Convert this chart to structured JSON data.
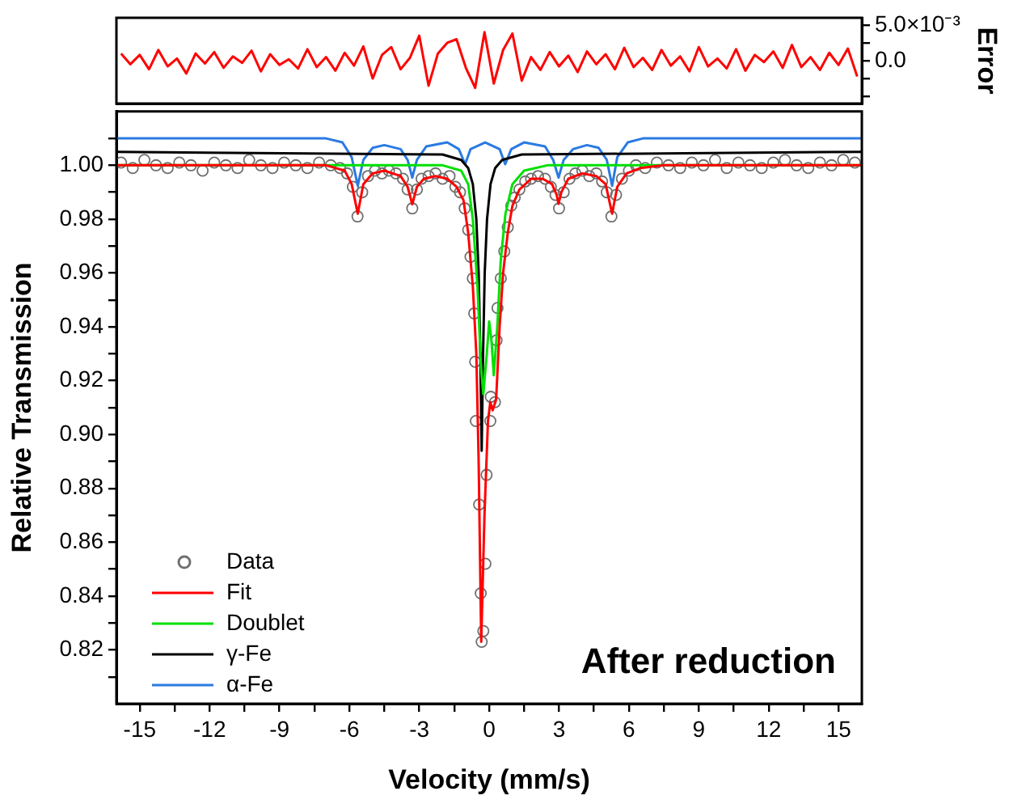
{
  "chart_data": [
    {
      "type": "line",
      "ylabel": "Error",
      "xlim": [
        -16,
        16
      ],
      "ylim": [
        -0.006,
        0.006
      ],
      "yticks": [
        {
          "value": -0.005,
          "label": null
        },
        {
          "value": -0.0025,
          "label": null
        },
        {
          "value": 0,
          "label": "0.0"
        },
        {
          "value": 0.0025,
          "label": null
        },
        {
          "value": 0.005,
          "label": "5.0×10⁻³"
        }
      ],
      "tick_labels": "y",
      "series": [
        {
          "color": "#ff0000",
          "x": [
            -15.8,
            -15.4,
            -15,
            -14.6,
            -14.2,
            -13.8,
            -13.4,
            -13,
            -12.6,
            -12.2,
            -11.8,
            -11.4,
            -11,
            -10.6,
            -10.2,
            -9.8,
            -9.4,
            -9,
            -8.6,
            -8.2,
            -7.8,
            -7.4,
            -7,
            -6.6,
            -6.2,
            -5.8,
            -5.4,
            -5,
            -4.6,
            -4.2,
            -3.8,
            -3.4,
            -3,
            -2.6,
            -2.2,
            -1.8,
            -1.4,
            -1,
            -0.6,
            -0.2,
            0.2,
            0.6,
            1,
            1.4,
            1.8,
            2.2,
            2.6,
            3,
            3.4,
            3.8,
            4.2,
            4.6,
            5,
            5.4,
            5.8,
            6.2,
            6.6,
            7,
            7.4,
            7.8,
            8.2,
            8.6,
            9,
            9.4,
            9.8,
            10.2,
            10.6,
            11,
            11.4,
            11.8,
            12.2,
            12.6,
            13,
            13.4,
            13.8,
            14.2,
            14.6,
            15,
            15.4,
            15.8
          ],
          "values": [
            0.001,
            -0.0005,
            0.0008,
            -0.0012,
            0.0015,
            -0.0008,
            0.0003,
            -0.0018,
            0.001,
            -0.0004,
            0.0012,
            -0.001,
            0.0006,
            -0.0003,
            0.0014,
            -0.0015,
            0.0009,
            -0.0006,
            0.0002,
            -0.0011,
            0.0016,
            -0.0009,
            0.0005,
            -0.0014,
            0.0011,
            -0.0007,
            0.002,
            -0.0025,
            0.0008,
            0.0019,
            -0.0012,
            0.0004,
            0.0035,
            -0.0035,
            0.001,
            0.0025,
            0.003,
            -0.001,
            -0.0038,
            0.004,
            -0.0032,
            0.0015,
            0.0038,
            -0.0028,
            0.0005,
            -0.0013,
            0.0012,
            -0.0008,
            0.0007,
            -0.0016,
            0.0013,
            -0.0005,
            0.0009,
            -0.0012,
            0.0018,
            -0.0009,
            0.0004,
            -0.0013,
            0.0015,
            -0.0007,
            0.0006,
            -0.0015,
            0.0019,
            -0.0008,
            0.0003,
            -0.0011,
            0.0016,
            -0.0014,
            0.0008,
            -0.0002,
            0.0013,
            -0.001,
            0.0022,
            -0.0009,
            0.0005,
            -0.0013,
            0.0011,
            -0.0006,
            0.0017,
            -0.0022
          ]
        }
      ]
    },
    {
      "type": "line",
      "xlabel": "Velocity (mm/s)",
      "ylabel": "Relative Transmission",
      "xlim": [
        -16,
        16
      ],
      "ylim": [
        0.8,
        1.02
      ],
      "xticks": [
        -15,
        {
          "value": -13.5,
          "label": null
        },
        -12,
        {
          "value": -10.5,
          "label": null
        },
        -9,
        {
          "value": -7.5,
          "label": null
        },
        -6,
        {
          "value": -4.5,
          "label": null
        },
        -3,
        {
          "value": -1.5,
          "label": null
        },
        0,
        {
          "value": 1.5,
          "label": null
        },
        3,
        {
          "value": 4.5,
          "label": null
        },
        6,
        {
          "value": 7.5,
          "label": null
        },
        9,
        {
          "value": 10.5,
          "label": null
        },
        12,
        {
          "value": 13.5,
          "label": null
        },
        15
      ],
      "yticks": [
        {
          "value": 0.81,
          "label": null
        },
        0.82,
        {
          "value": 0.83,
          "label": null
        },
        0.84,
        {
          "value": 0.85,
          "label": null
        },
        0.86,
        {
          "value": 0.87,
          "label": null
        },
        0.88,
        {
          "value": 0.89,
          "label": null
        },
        {
          "value": 0.9,
          "label": "0.90"
        },
        {
          "value": 0.91,
          "label": null
        },
        0.92,
        {
          "value": 0.93,
          "label": null
        },
        0.94,
        {
          "value": 0.95,
          "label": null
        },
        0.96,
        {
          "value": 0.97,
          "label": null
        },
        0.98,
        {
          "value": 0.99,
          "label": null
        },
        {
          "value": 1,
          "label": "1.00"
        },
        {
          "value": 1.01,
          "label": null
        }
      ],
      "legend": "bottom left",
      "annotations": [
        "After reduction"
      ],
      "series": [
        {
          "name": "Data",
          "type": "scatter",
          "marker": "circle",
          "color": "#707070",
          "x": [
            -15.8,
            -15.3,
            -14.8,
            -14.3,
            -13.8,
            -13.3,
            -12.8,
            -12.3,
            -11.8,
            -11.3,
            -10.8,
            -10.3,
            -9.8,
            -9.3,
            -8.8,
            -8.3,
            -7.8,
            -7.3,
            -6.8,
            -6.4,
            -6.1,
            -5.85,
            -5.65,
            -5.45,
            -5.2,
            -4.9,
            -4.6,
            -4.3,
            -4,
            -3.7,
            -3.5,
            -3.3,
            -3.1,
            -2.9,
            -2.6,
            -2.3,
            -2,
            -1.7,
            -1.45,
            -1.25,
            -1.05,
            -0.9,
            -0.8,
            -0.7,
            -0.64,
            -0.6,
            -0.57,
            -0.43,
            -0.36,
            -0.32,
            -0.25,
            -0.16,
            -0.11,
            0.05,
            0.07,
            0.25,
            0.32,
            0.36,
            0.5,
            0.65,
            0.8,
            0.95,
            1.1,
            1.3,
            1.55,
            1.8,
            2.1,
            2.4,
            2.65,
            2.85,
            3,
            3.2,
            3.45,
            3.7,
            4,
            4.3,
            4.6,
            4.85,
            5.05,
            5.25,
            5.45,
            5.7,
            6,
            6.3,
            6.7,
            7.2,
            7.7,
            8.2,
            8.7,
            9.2,
            9.7,
            10.2,
            10.7,
            11.2,
            11.7,
            12.2,
            12.7,
            13.2,
            13.7,
            14.2,
            14.7,
            15.2,
            15.7
          ],
          "values": [
            1.001,
            0.999,
            1.002,
            1,
            0.999,
            1.001,
            1,
            0.998,
            1.001,
            1,
            0.999,
            1.002,
            1,
            0.999,
            1.001,
            1,
            0.999,
            1.001,
            1,
            0.999,
            0.997,
            0.992,
            0.981,
            0.99,
            0.996,
            0.998,
            0.997,
            0.998,
            0.997,
            0.995,
            0.991,
            0.984,
            0.991,
            0.995,
            0.996,
            0.997,
            0.995,
            0.996,
            0.992,
            0.99,
            0.984,
            0.976,
            0.966,
            0.958,
            0.945,
            0.927,
            0.905,
            0.874,
            0.841,
            0.823,
            0.827,
            0.852,
            0.885,
            0.905,
            0.914,
            0.912,
            0.935,
            0.947,
            0.958,
            0.968,
            0.977,
            0.985,
            0.988,
            0.991,
            0.994,
            0.995,
            0.996,
            0.995,
            0.992,
            0.989,
            0.984,
            0.99,
            0.995,
            0.997,
            0.998,
            0.996,
            0.997,
            0.994,
            0.99,
            0.981,
            0.989,
            0.995,
            0.998,
            1,
            0.999,
            1.001,
            1,
            0.999,
            1.001,
            1,
            1.002,
            0.999,
            1.001,
            1,
            0.999,
            1.001,
            1.002,
            1,
            0.999,
            1.001,
            1,
            1.002,
            1.001
          ]
        },
        {
          "name": "Fit",
          "color": "#ff0000",
          "x": [
            -16,
            -7,
            -6.2,
            -5.9,
            -5.64,
            -5.4,
            -5,
            -4.5,
            -3.8,
            -3.5,
            -3.3,
            -3.1,
            -2.8,
            -2.3,
            -1.8,
            -1.4,
            -1.1,
            -0.9,
            -0.7,
            -0.55,
            -0.45,
            -0.34,
            -0.2,
            -0.05,
            0.05,
            0.15,
            0.3,
            0.45,
            0.6,
            0.8,
            1,
            1.3,
            1.8,
            2.3,
            2.7,
            2.9,
            2.98,
            3.1,
            3.4,
            4,
            4.6,
            5,
            5.28,
            5.5,
            5.9,
            6.5,
            7.5,
            16
          ],
          "values": [
            1,
            1,
            0.998,
            0.993,
            0.982,
            0.993,
            0.997,
            0.998,
            0.996,
            0.992,
            0.9855,
            0.992,
            0.995,
            0.996,
            0.995,
            0.992,
            0.987,
            0.975,
            0.955,
            0.93,
            0.89,
            0.823,
            0.87,
            0.905,
            0.912,
            0.909,
            0.913,
            0.94,
            0.96,
            0.975,
            0.985,
            0.991,
            0.995,
            0.995,
            0.993,
            0.989,
            0.9857,
            0.99,
            0.995,
            0.997,
            0.996,
            0.993,
            0.982,
            0.992,
            0.997,
            0.999,
            1,
            1
          ]
        },
        {
          "name": "Doublet",
          "color": "#00e000",
          "x": [
            -16,
            -2,
            -1.2,
            -0.9,
            -0.7,
            -0.5,
            -0.35,
            -0.25,
            -0.1,
            0,
            0.1,
            0.2,
            0.35,
            0.5,
            0.7,
            1,
            1.5,
            2.5,
            16
          ],
          "values": [
            1,
            1,
            0.998,
            0.993,
            0.98,
            0.955,
            0.925,
            0.915,
            0.93,
            0.942,
            0.935,
            0.922,
            0.94,
            0.965,
            0.982,
            0.993,
            0.998,
            1,
            1
          ]
        },
        {
          "name": "γ-Fe",
          "color": "#000000",
          "x": [
            -16,
            -2,
            -1.2,
            -0.9,
            -0.7,
            -0.55,
            -0.45,
            -0.38,
            -0.32,
            -0.26,
            -0.19,
            -0.09,
            0.06,
            0.26,
            0.56,
            1.4,
            16
          ],
          "values": [
            1.005,
            1.004,
            1.002,
            0.999,
            0.993,
            0.98,
            0.96,
            0.93,
            0.894,
            0.93,
            0.96,
            0.98,
            0.993,
            0.999,
            1.002,
            1.004,
            1.005
          ]
        },
        {
          "name": "α-Fe",
          "color": "#2a7ae2",
          "x": [
            -16,
            -7,
            -6.3,
            -5.9,
            -5.64,
            -5.4,
            -5,
            -4.5,
            -3.8,
            -3.5,
            -3.3,
            -3.1,
            -2.7,
            -1.8,
            -1.3,
            -1.03,
            -0.8,
            -0.17,
            0.45,
            0.69,
            0.95,
            1.5,
            2.4,
            2.75,
            2.98,
            3.2,
            3.6,
            4.2,
            4.7,
            5.05,
            5.28,
            5.5,
            5.95,
            6.6,
            16
          ],
          "values": [
            1.01,
            1.01,
            1.0085,
            1.003,
            0.9924,
            1.002,
            1.0065,
            1.0075,
            1.006,
            1.002,
            0.9954,
            1.002,
            1.007,
            1.0085,
            1.006,
            1.0004,
            1.006,
            1.0085,
            1.006,
            1.0004,
            1.006,
            1.0085,
            1.007,
            1.002,
            0.9954,
            1.002,
            1.006,
            1.0075,
            1.0065,
            1.002,
            0.9924,
            1.003,
            1.0085,
            1.01,
            1.01
          ]
        }
      ]
    }
  ]
}
